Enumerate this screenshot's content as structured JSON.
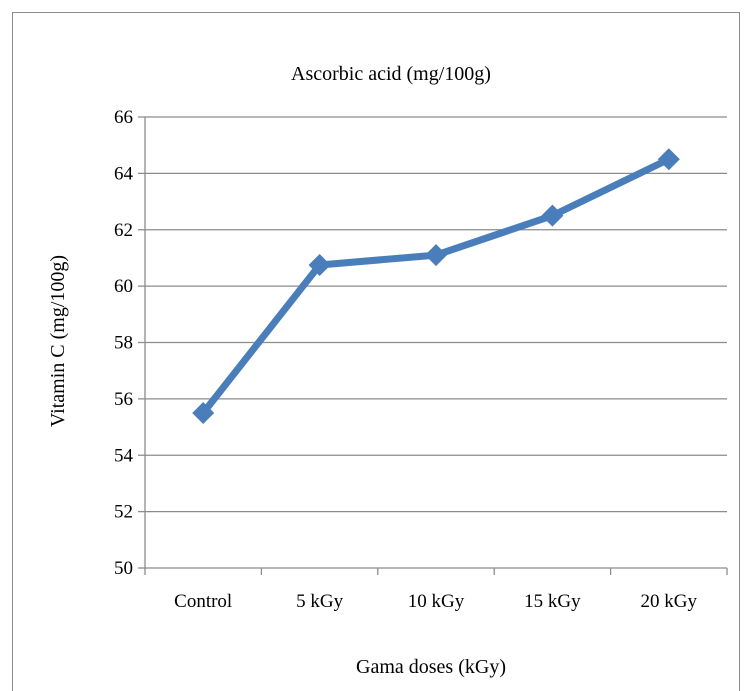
{
  "chart_data": {
    "type": "line",
    "title": "Ascorbic acid (mg/100g)",
    "xlabel": "Gama doses (kGy)",
    "ylabel": "Vitamin C (mg/100g)",
    "categories": [
      "Control",
      "5 kGy",
      "10 kGy",
      "15 kGy",
      "20 kGy"
    ],
    "series": [
      {
        "values": [
          55.5,
          60.75,
          61.1,
          62.5,
          64.5
        ]
      }
    ],
    "ylim": [
      50,
      66
    ],
    "yticks": [
      "50",
      "52",
      "54",
      "56",
      "58",
      "60",
      "62",
      "64",
      "66"
    ],
    "grid": "horizontal",
    "legend": "none",
    "colors": {
      "series": "#4a7ebb",
      "grid": "#8c8c8c",
      "axis": "#8c8c8c"
    }
  }
}
